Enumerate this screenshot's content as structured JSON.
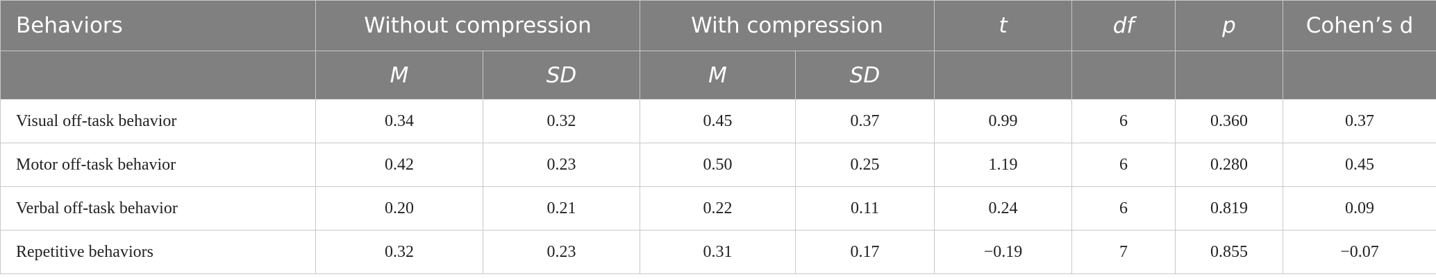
{
  "table": {
    "header": [
      "Behaviors",
      "Without compression",
      "With compression",
      "t",
      "df",
      "p",
      "Cohen’s d"
    ],
    "subheader": [
      "M",
      "SD",
      "M",
      "SD"
    ],
    "rows": [
      [
        "Visual off-task behavior",
        "0.34",
        "0.32",
        "0.45",
        "0.37",
        "0.99",
        "6",
        "0.360",
        "0.37"
      ],
      [
        "Motor off-task behavior",
        "0.42",
        "0.23",
        "0.50",
        "0.25",
        "1.19",
        "6",
        "0.280",
        "0.45"
      ],
      [
        "Verbal off-task behavior",
        "0.20",
        "0.21",
        "0.22",
        "0.11",
        "0.24",
        "6",
        "0.819",
        "0.09"
      ],
      [
        "Repetitive behaviors",
        "0.32",
        "0.23",
        "0.31",
        "0.17",
        "−0.19",
        "7",
        "0.855",
        "−0.07"
      ]
    ]
  }
}
